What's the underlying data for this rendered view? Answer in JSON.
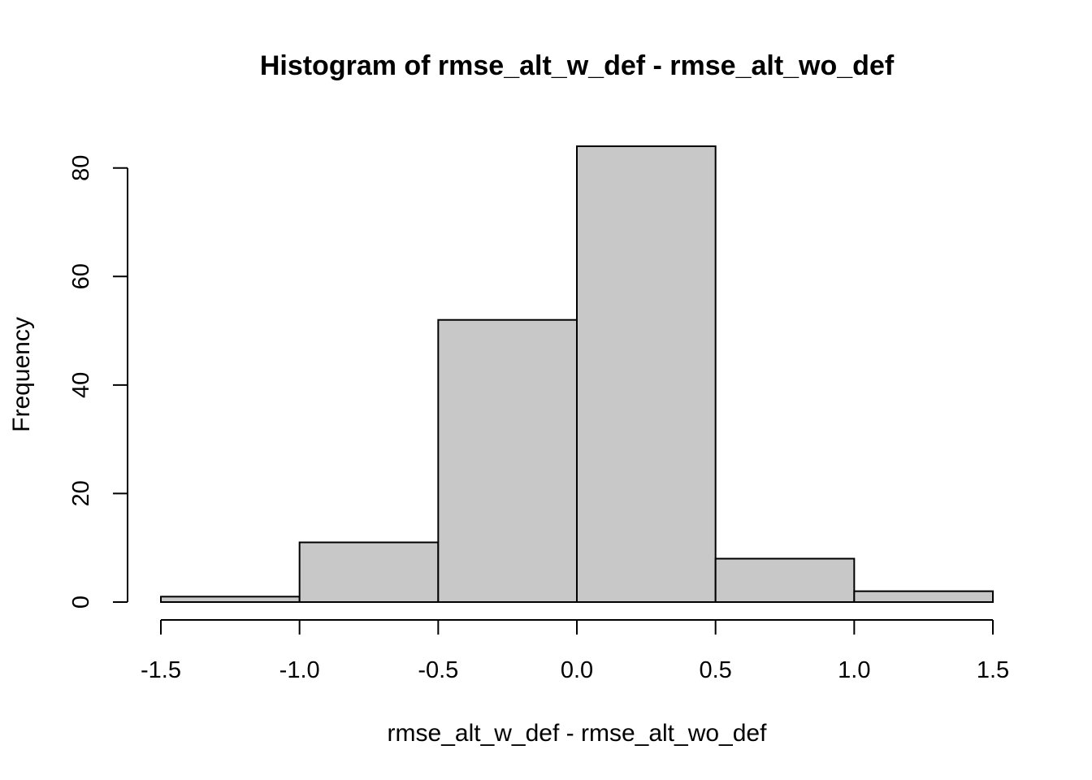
{
  "chart_data": {
    "type": "bar",
    "title": "Histogram of rmse_alt_w_def - rmse_alt_wo_def",
    "xlabel": "rmse_alt_w_def - rmse_alt_wo_def",
    "ylabel": "Frequency",
    "bins": [
      {
        "start": -1.5,
        "end": -1.0,
        "count": 1
      },
      {
        "start": -1.0,
        "end": -0.5,
        "count": 11
      },
      {
        "start": -0.5,
        "end": 0.0,
        "count": 52
      },
      {
        "start": 0.0,
        "end": 0.5,
        "count": 84
      },
      {
        "start": 0.5,
        "end": 1.0,
        "count": 8
      },
      {
        "start": 1.0,
        "end": 1.5,
        "count": 2
      }
    ],
    "x_ticks": [
      -1.5,
      -1.0,
      -0.5,
      0.0,
      0.5,
      1.0,
      1.5
    ],
    "x_tick_labels": [
      "-1.5",
      "-1.0",
      "-0.5",
      "0.0",
      "0.5",
      "1.0",
      "1.5"
    ],
    "y_ticks": [
      0,
      20,
      40,
      60,
      80
    ],
    "y_tick_labels": [
      "0",
      "20",
      "40",
      "60",
      "80"
    ],
    "xlim": [
      -1.5,
      1.5
    ],
    "ylim": [
      0,
      84
    ],
    "grid": false,
    "bar_color": "#c8c8c8",
    "edge_color": "#000000"
  }
}
